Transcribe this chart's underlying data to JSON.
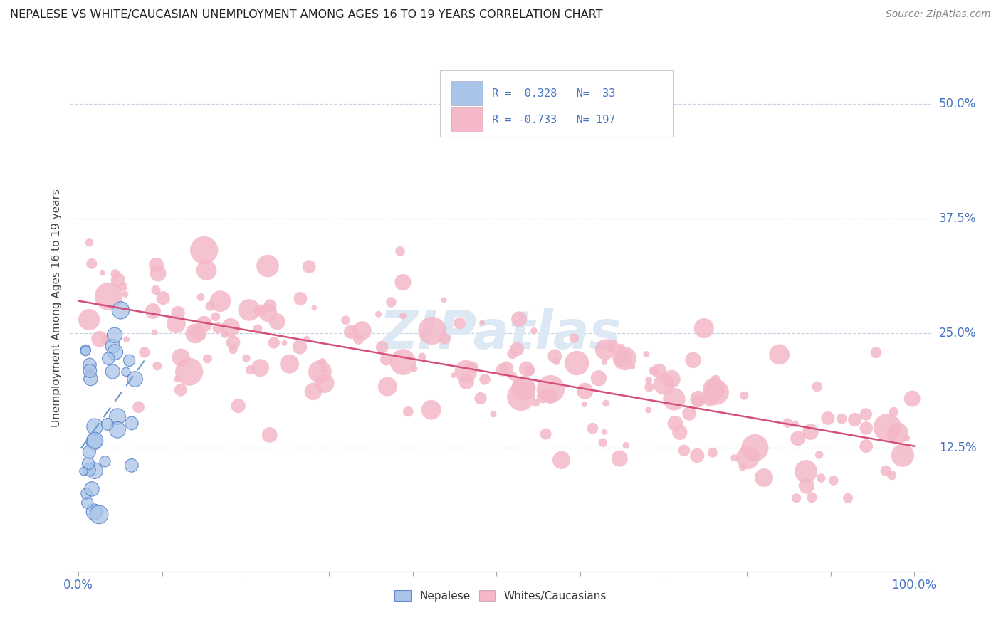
{
  "title": "NEPALESE VS WHITE/CAUCASIAN UNEMPLOYMENT AMONG AGES 16 TO 19 YEARS CORRELATION CHART",
  "source": "Source: ZipAtlas.com",
  "ylabel": "Unemployment Among Ages 16 to 19 years",
  "yticks": [
    "12.5%",
    "25.0%",
    "37.5%",
    "50.0%"
  ],
  "ytick_values": [
    0.125,
    0.25,
    0.375,
    0.5
  ],
  "xlim": [
    0.0,
    1.0
  ],
  "ylim": [
    0.0,
    0.55
  ],
  "legend_nepalese_R": "0.328",
  "legend_nepalese_N": "33",
  "legend_white_R": "-0.733",
  "legend_white_N": "197",
  "color_nepalese_fill": "#a8c4e8",
  "color_nepalese_edge": "#4472c4",
  "color_nepalese_line": "#6699cc",
  "color_white_fill": "#f4b8c8",
  "color_white_edge": "none",
  "color_white_line": "#d4507a",
  "color_blue_text": "#4472c4",
  "watermark_color": "#dce8f4",
  "background_color": "#ffffff",
  "grid_color": "#c8d4e4",
  "nepalese_seed": 123,
  "white_seed": 456
}
